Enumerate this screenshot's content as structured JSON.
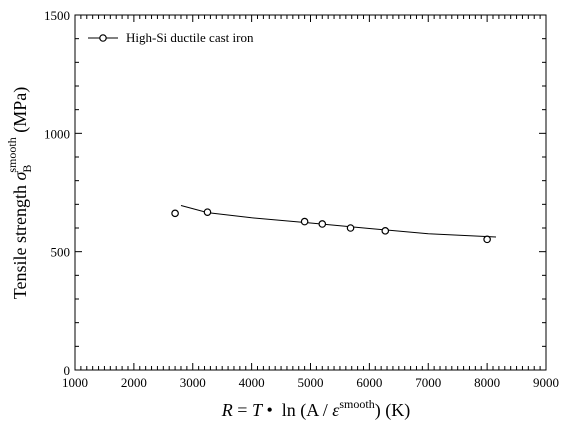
{
  "chart_data": {
    "type": "scatter",
    "xlabel": "R = T · ln (A / ε̇ smooth) (K)",
    "ylabel": "Tensile strength σB smooth (MPa)",
    "xlabel_parts": {
      "r": "R",
      "eq": " = ",
      "t": "T",
      "dot": " • ",
      "ln": " ln (A / ",
      "eps": "ε",
      "sup": "smooth",
      "unit": ") (K)"
    },
    "ylabel_parts": {
      "prefix": "Tensile strength ",
      "sigma": "σ",
      "sub": "B",
      "sup": "smooth",
      "unit": " (MPa)"
    },
    "xlim": [
      1000,
      9000
    ],
    "ylim": [
      0,
      1500
    ],
    "x_ticks": [
      1000,
      2000,
      3000,
      4000,
      5000,
      6000,
      7000,
      8000,
      9000
    ],
    "y_ticks": [
      0,
      500,
      1000,
      1500
    ],
    "x_tick_labels": [
      "1000",
      "2000",
      "3000",
      "4000",
      "5000",
      "6000",
      "7000",
      "8000",
      "9000"
    ],
    "y_tick_labels": [
      "0",
      "500",
      "1000",
      "1500"
    ],
    "grid": false,
    "legend_position": "top-left",
    "series": [
      {
        "name": "High-Si ductile cast iron",
        "marker": "open-circle",
        "points": [
          {
            "x": 2700,
            "y": 662
          },
          {
            "x": 3250,
            "y": 667
          },
          {
            "x": 4900,
            "y": 627
          },
          {
            "x": 5200,
            "y": 617
          },
          {
            "x": 5680,
            "y": 600
          },
          {
            "x": 6270,
            "y": 588
          },
          {
            "x": 8000,
            "y": 552
          }
        ],
        "fit_line": [
          {
            "x": 2800,
            "y": 695
          },
          {
            "x": 3250,
            "y": 665
          },
          {
            "x": 4000,
            "y": 643
          },
          {
            "x": 5000,
            "y": 621
          },
          {
            "x": 6000,
            "y": 598
          },
          {
            "x": 7000,
            "y": 576
          },
          {
            "x": 8150,
            "y": 562
          }
        ]
      }
    ]
  }
}
